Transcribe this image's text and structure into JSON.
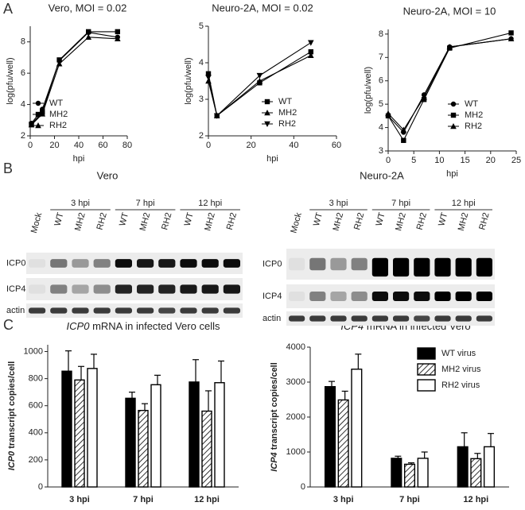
{
  "panel_labels": [
    "A",
    "B",
    "C"
  ],
  "chart_data": [
    {
      "type": "line",
      "title": "Vero, MOI = 0.02",
      "xlabel": "hpi",
      "ylabel": "log(pfu/well)",
      "x": [
        1,
        10,
        24,
        48,
        72
      ],
      "xlim": [
        0,
        80
      ],
      "xticks": [
        0,
        20,
        40,
        60,
        80
      ],
      "ylim": [
        2,
        9
      ],
      "yticks": [
        2,
        4,
        6,
        8
      ],
      "series": [
        {
          "name": "WT",
          "color": "#000000",
          "marker": "circle",
          "values": [
            2.8,
            3.7,
            6.8,
            8.6,
            8.3
          ]
        },
        {
          "name": "MH2",
          "color": "#000000",
          "marker": "square",
          "values": [
            2.75,
            3.5,
            6.85,
            8.65,
            8.65
          ]
        },
        {
          "name": "RH2",
          "color": "#000000",
          "marker": "triangle-up",
          "values": [
            2.7,
            3.4,
            6.6,
            8.3,
            8.2
          ]
        }
      ]
    },
    {
      "type": "line",
      "title": "Neuro-2A, MOI = 0.02",
      "xlabel": "hpi",
      "ylabel": "log(pfu/well)",
      "x": [
        0,
        4,
        24,
        48
      ],
      "xlim": [
        0,
        60
      ],
      "xticks": [
        0,
        20,
        40,
        60
      ],
      "ylim": [
        2,
        5
      ],
      "yticks": [
        2,
        3,
        4,
        5
      ],
      "series": [
        {
          "name": "WT",
          "color": "#000000",
          "marker": "square",
          "values": [
            3.7,
            2.55,
            3.45,
            4.3
          ]
        },
        {
          "name": "MH2",
          "color": "#000000",
          "marker": "triangle-up",
          "values": [
            3.5,
            2.55,
            3.5,
            4.2
          ]
        },
        {
          "name": "RH2",
          "color": "#000000",
          "marker": "triangle-down",
          "values": [
            3.6,
            2.55,
            3.65,
            4.55
          ]
        }
      ]
    },
    {
      "type": "line",
      "title": "Neuro-2A, MOI = 10",
      "xlabel": "hpi",
      "ylabel": "log(pfu/well)",
      "x": [
        0,
        3,
        7,
        12,
        24
      ],
      "xlim": [
        0,
        25
      ],
      "xticks": [
        0,
        5,
        10,
        15,
        20,
        25
      ],
      "ylim": [
        3,
        8.2
      ],
      "yticks": [
        3,
        4,
        5,
        6,
        7,
        8
      ],
      "series": [
        {
          "name": "WT",
          "color": "#000000",
          "marker": "circle",
          "values": [
            4.5,
            3.8,
            5.4,
            7.45,
            7.8
          ]
        },
        {
          "name": "MH2",
          "color": "#000000",
          "marker": "square",
          "values": [
            4.5,
            3.45,
            5.2,
            7.4,
            8.05
          ]
        },
        {
          "name": "RH2",
          "color": "#000000",
          "marker": "triangle-up",
          "values": [
            4.6,
            3.9,
            5.3,
            7.45,
            7.8
          ]
        }
      ]
    },
    {
      "type": "bar",
      "title_italic": "ICP0",
      "title": "mRNA in infected Vero cells",
      "ylabel_italic": "ICP0",
      "ylabel": "transcript copies/cell",
      "categories": [
        "3 hpi",
        "7 hpi",
        "12 hpi"
      ],
      "ylim": [
        0,
        1050
      ],
      "yticks": [
        0,
        200,
        400,
        600,
        800,
        1000
      ],
      "series": [
        {
          "name": "WT virus",
          "color": "#000000",
          "fill": "solid",
          "values": [
            855,
            655,
            775
          ],
          "errors": [
            150,
            45,
            165
          ]
        },
        {
          "name": "MH2 virus",
          "color": "#000000",
          "fill": "hatch",
          "values": [
            790,
            565,
            560
          ],
          "errors": [
            100,
            50,
            150
          ]
        },
        {
          "name": "RH2 virus",
          "color": "#000000",
          "fill": "white",
          "values": [
            875,
            755,
            770
          ],
          "errors": [
            105,
            70,
            160
          ]
        }
      ]
    },
    {
      "type": "bar",
      "title_italic": "ICP4",
      "title": "mRNA in infected Vero",
      "ylabel_italic": "ICP4",
      "ylabel": "transcript copies/cell",
      "categories": [
        "3 hpi",
        "7 hpi",
        "12 hpi"
      ],
      "ylim": [
        0,
        4000
      ],
      "yticks": [
        0,
        1000,
        2000,
        3000,
        4000
      ],
      "legend": "upper right",
      "series": [
        {
          "name": "WT virus",
          "color": "#000000",
          "fill": "solid",
          "values": [
            2870,
            820,
            1150
          ],
          "errors": [
            150,
            60,
            400
          ]
        },
        {
          "name": "MH2 virus",
          "color": "#000000",
          "fill": "hatch",
          "values": [
            2490,
            650,
            810
          ],
          "errors": [
            250,
            40,
            150
          ]
        },
        {
          "name": "RH2 virus",
          "color": "#000000",
          "fill": "white",
          "values": [
            3370,
            820,
            1150
          ],
          "errors": [
            430,
            180,
            380
          ]
        }
      ]
    }
  ],
  "blots": [
    {
      "title": "Vero",
      "groups": [
        "3 hpi",
        "7 hpi",
        "12 hpi"
      ],
      "lanes": [
        "Mock",
        "WT",
        "MH2",
        "RH2",
        "WT",
        "MH2",
        "RH2",
        "WT",
        "MH2",
        "RH2"
      ],
      "rows": [
        "ICP0",
        "ICP4",
        "actin"
      ]
    },
    {
      "title": "Neuro-2A",
      "groups": [
        "3 hpi",
        "7 hpi",
        "12 hpi"
      ],
      "lanes": [
        "Mock",
        "WT",
        "MH2",
        "RH2",
        "WT",
        "MH2",
        "RH2",
        "WT",
        "MH2",
        "RH2"
      ],
      "rows": [
        "ICP0",
        "ICP4",
        "actin"
      ]
    }
  ]
}
